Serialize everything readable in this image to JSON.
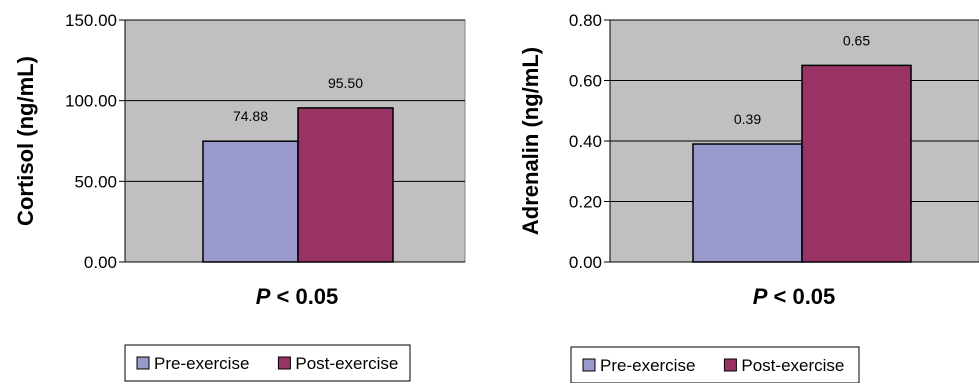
{
  "colors": {
    "plot_bg": "#c0c0c0",
    "grid": "#000000",
    "pre": "#9999cc",
    "post": "#993366",
    "bar_outline": "#000000"
  },
  "chart_data": [
    {
      "type": "bar",
      "ylabel": "Cortisol (ng/mL)",
      "xlabel_italic": "P",
      "xlabel_rest": " < 0.05",
      "ylim": [
        0,
        150
      ],
      "yticks": [
        0,
        50,
        100,
        150
      ],
      "ytick_labels": [
        "0.00",
        "50.00",
        "100.00",
        "150.00"
      ],
      "grid": true,
      "legend_position": "bottom",
      "series": [
        {
          "name": "Pre-exercise",
          "values": [
            74.88
          ],
          "labels": [
            "74.88"
          ],
          "color": "#9999cc"
        },
        {
          "name": "Post-exercise",
          "values": [
            95.5
          ],
          "labels": [
            "95.50"
          ],
          "color": "#993366"
        }
      ]
    },
    {
      "type": "bar",
      "ylabel": "Adrenalin (ng/mL)",
      "xlabel_italic": "P",
      "xlabel_rest": " < 0.05",
      "ylim": [
        0,
        0.8
      ],
      "yticks": [
        0,
        0.2,
        0.4,
        0.6,
        0.8
      ],
      "ytick_labels": [
        "0.00",
        "0.20",
        "0.40",
        "0.60",
        "0.80"
      ],
      "grid": true,
      "legend_position": "bottom",
      "series": [
        {
          "name": "Pre-exercise",
          "values": [
            0.39
          ],
          "labels": [
            "0.39"
          ],
          "color": "#9999cc"
        },
        {
          "name": "Post-exercise",
          "values": [
            0.65
          ],
          "labels": [
            "0.65"
          ],
          "color": "#993366"
        }
      ]
    }
  ]
}
